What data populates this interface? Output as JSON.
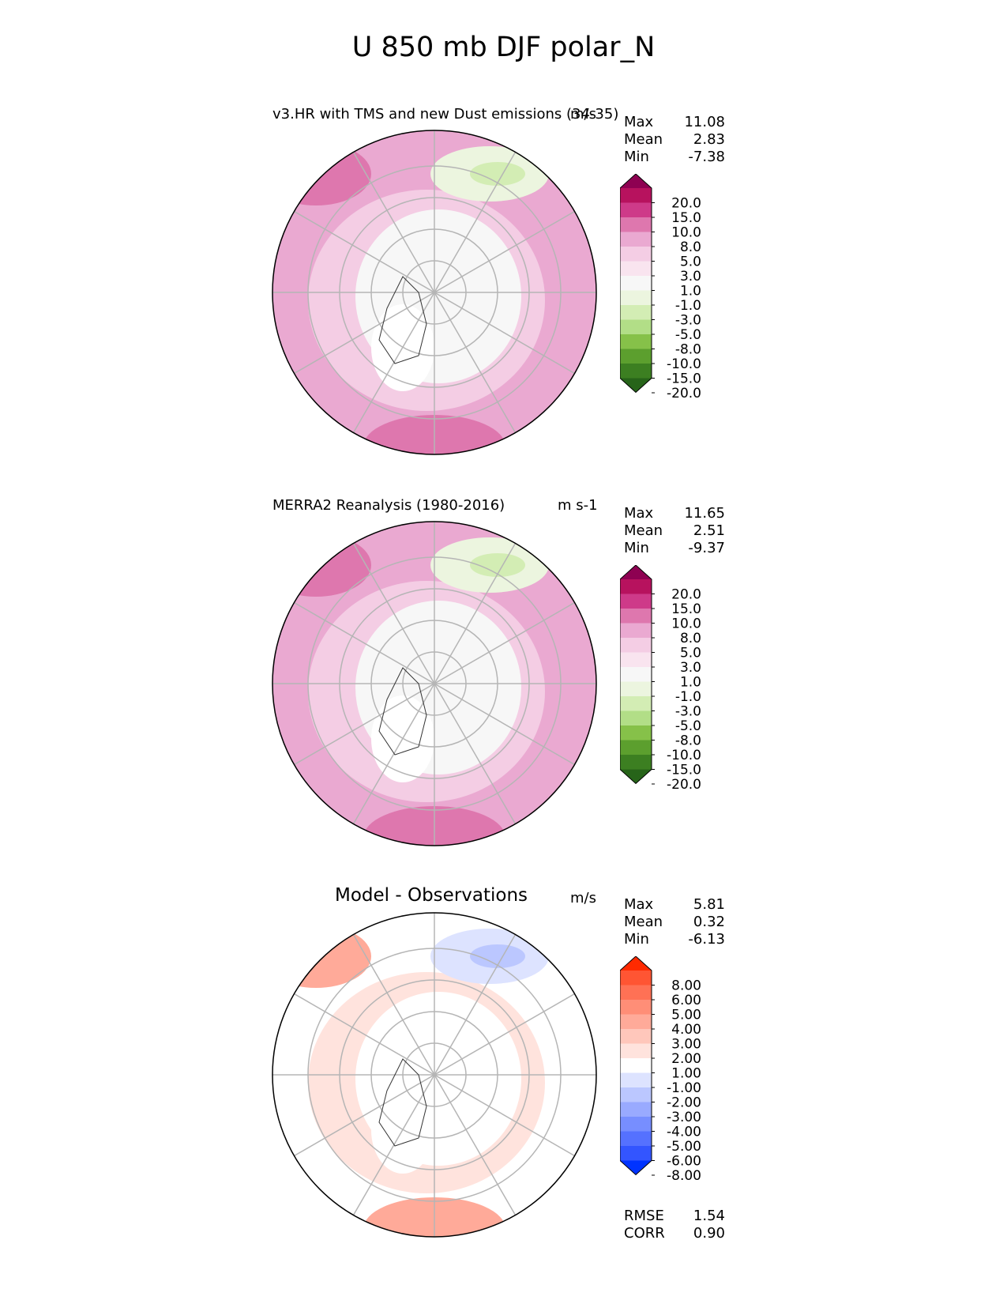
{
  "title": "U 850 mb DJF polar_N",
  "panels": [
    {
      "id": "model",
      "title": "v3.HR with TMS and new Dust emissions (34-35)",
      "units": "m/s",
      "stats": [
        {
          "label": "Max",
          "value": "11.08"
        },
        {
          "label": "Mean",
          "value": "2.83"
        },
        {
          "label": "Min",
          "value": "-7.38"
        }
      ],
      "colorbar_labels": [
        "20.0",
        "15.0",
        "10.0",
        "8.0",
        "5.0",
        "3.0",
        "1.0",
        "-1.0",
        "-3.0",
        "-5.0",
        "-8.0",
        "-10.0",
        "-15.0",
        "-20.0"
      ],
      "colorbar_colors": [
        "#8e0152",
        "#b7125e",
        "#ce3a89",
        "#de77ae",
        "#eaa9d1",
        "#f4cde4",
        "#f9e4ef",
        "#f7f7f7",
        "#ecf5df",
        "#d3edb4",
        "#b2de87",
        "#86c149",
        "#5c9f2e",
        "#3c7f21",
        "#276419"
      ],
      "field_colors": {
        "base": "#eaa9d1",
        "inner": "#f7f7f7",
        "mid": "#f4cde4",
        "strong": "#de77ae",
        "neg1": "#ecf5df",
        "neg2": "#d3edb4"
      }
    },
    {
      "id": "obs",
      "title": "MERRA2 Reanalysis (1980-2016)",
      "units": "m s-1",
      "stats": [
        {
          "label": "Max",
          "value": "11.65"
        },
        {
          "label": "Mean",
          "value": "2.51"
        },
        {
          "label": "Min",
          "value": "-9.37"
        }
      ],
      "colorbar_labels": [
        "20.0",
        "15.0",
        "10.0",
        "8.0",
        "5.0",
        "3.0",
        "1.0",
        "-1.0",
        "-3.0",
        "-5.0",
        "-8.0",
        "-10.0",
        "-15.0",
        "-20.0"
      ],
      "colorbar_colors": [
        "#8e0152",
        "#b7125e",
        "#ce3a89",
        "#de77ae",
        "#eaa9d1",
        "#f4cde4",
        "#f9e4ef",
        "#f7f7f7",
        "#ecf5df",
        "#d3edb4",
        "#b2de87",
        "#86c149",
        "#5c9f2e",
        "#3c7f21",
        "#276419"
      ],
      "field_colors": {
        "base": "#eaa9d1",
        "inner": "#f7f7f7",
        "mid": "#f4cde4",
        "strong": "#de77ae",
        "neg1": "#ecf5df",
        "neg2": "#d3edb4"
      }
    },
    {
      "id": "diff",
      "title": "Model - Observations",
      "units": "m/s",
      "stats": [
        {
          "label": "Max",
          "value": "5.81"
        },
        {
          "label": "Mean",
          "value": "0.32"
        },
        {
          "label": "Min",
          "value": "-6.13"
        }
      ],
      "colorbar_labels": [
        "8.00",
        "6.00",
        "5.00",
        "4.00",
        "3.00",
        "2.00",
        "1.00",
        "-1.00",
        "-2.00",
        "-3.00",
        "-4.00",
        "-5.00",
        "-6.00",
        "-8.00"
      ],
      "colorbar_colors": [
        "#ff2a00",
        "#ff5533",
        "#ff7155",
        "#ff8e77",
        "#ffaa99",
        "#ffc7bb",
        "#ffe3dd",
        "#ffffff",
        "#dde3ff",
        "#bbc7ff",
        "#99aaff",
        "#778eff",
        "#5571ff",
        "#3355ff",
        "#0033ff"
      ],
      "field_colors": {
        "base": "#ffffff",
        "inner": "#ffffff",
        "mid": "#ffe3dd",
        "strong": "#ffaa99",
        "neg1": "#dde3ff",
        "neg2": "#bbc7ff"
      }
    }
  ],
  "metrics": [
    {
      "label": "RMSE",
      "value": "1.54"
    },
    {
      "label": "CORR",
      "value": "0.90"
    }
  ],
  "chart_data": [
    {
      "type": "heatmap",
      "title": "v3.HR with TMS and new Dust emissions (34-35)",
      "projection": "north polar stereographic",
      "units": "m/s",
      "max": 11.08,
      "mean": 2.83,
      "min": -7.38,
      "levels": [
        -20,
        -15,
        -10,
        -8,
        -5,
        -3,
        -1,
        1,
        3,
        5,
        8,
        10,
        15,
        20
      ]
    },
    {
      "type": "heatmap",
      "title": "MERRA2 Reanalysis (1980-2016)",
      "projection": "north polar stereographic",
      "units": "m s-1",
      "max": 11.65,
      "mean": 2.51,
      "min": -9.37,
      "levels": [
        -20,
        -15,
        -10,
        -8,
        -5,
        -3,
        -1,
        1,
        3,
        5,
        8,
        10,
        15,
        20
      ]
    },
    {
      "type": "heatmap",
      "title": "Model - Observations",
      "projection": "north polar stereographic",
      "units": "m/s",
      "max": 5.81,
      "mean": 0.32,
      "min": -6.13,
      "rmse": 1.54,
      "corr": 0.9,
      "levels": [
        -8,
        -6,
        -5,
        -4,
        -3,
        -2,
        -1,
        1,
        2,
        3,
        4,
        5,
        6,
        8
      ]
    }
  ]
}
